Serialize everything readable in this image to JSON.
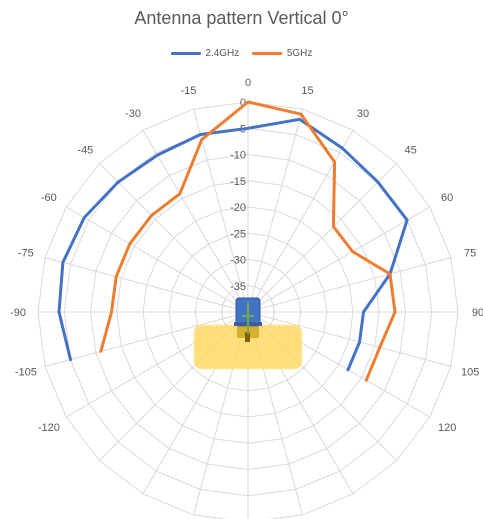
{
  "chart_data": {
    "type": "polar-line",
    "title": "Antenna pattern Vertical 0°",
    "legend_position": "top",
    "angle_ticks": [
      0,
      15,
      30,
      45,
      60,
      75,
      90,
      105,
      120,
      -120,
      -105,
      -90,
      -75,
      -60,
      -45,
      -30,
      -15
    ],
    "radial_ticks": [
      0,
      -5,
      -10,
      -15,
      -20,
      -25,
      -30,
      -35
    ],
    "radial_range": [
      -40,
      0
    ],
    "series": [
      {
        "name": "2.4GHz",
        "color": "#4472C4",
        "points": [
          {
            "angle": -105,
            "value": -5
          },
          {
            "angle": -90,
            "value": -4
          },
          {
            "angle": -75,
            "value": -3.5
          },
          {
            "angle": -60,
            "value": -4
          },
          {
            "angle": -45,
            "value": -5
          },
          {
            "angle": -30,
            "value": -5.5
          },
          {
            "angle": -15,
            "value": -5
          },
          {
            "angle": 0,
            "value": -5
          },
          {
            "angle": 15,
            "value": -2
          },
          {
            "angle": 30,
            "value": -4
          },
          {
            "angle": 45,
            "value": -5
          },
          {
            "angle": 60,
            "value": -5
          },
          {
            "angle": 75,
            "value": -12
          },
          {
            "angle": 90,
            "value": -18
          },
          {
            "angle": 105,
            "value": -18
          },
          {
            "angle": 120,
            "value": -18
          }
        ]
      },
      {
        "name": "5GHz",
        "color": "#ED7D31",
        "points": [
          {
            "angle": -105,
            "value": -11
          },
          {
            "angle": -90,
            "value": -14
          },
          {
            "angle": -75,
            "value": -14
          },
          {
            "angle": -60,
            "value": -14
          },
          {
            "angle": -45,
            "value": -14
          },
          {
            "angle": -30,
            "value": -14
          },
          {
            "angle": -15,
            "value": -6
          },
          {
            "angle": 0,
            "value": 0
          },
          {
            "angle": 15,
            "value": -1
          },
          {
            "angle": 30,
            "value": -7
          },
          {
            "angle": 45,
            "value": -17
          },
          {
            "angle": 60,
            "value": -17
          },
          {
            "angle": 75,
            "value": -12
          },
          {
            "angle": 90,
            "value": -12
          },
          {
            "angle": 105,
            "value": -14
          },
          {
            "angle": 120,
            "value": -14
          }
        ]
      }
    ]
  },
  "device_icon": {
    "name": "router-antenna-icon",
    "colors": {
      "body": "#4472C4",
      "base": "#FFD966",
      "base_border": "#FFE699",
      "mast": "#70AD47",
      "stand": "#7F6000"
    }
  }
}
